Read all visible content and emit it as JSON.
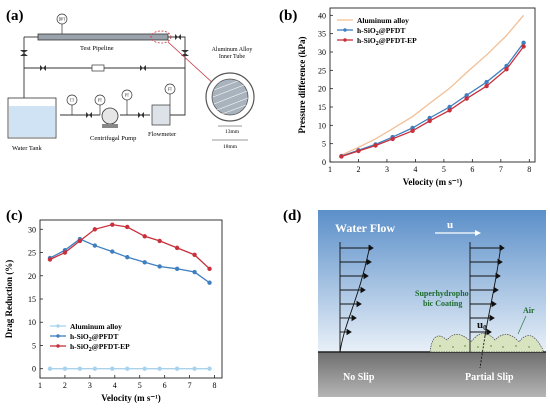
{
  "panel_a": {
    "letter": "(a)",
    "labels": {
      "test_pipeline": "Test Pipeline",
      "water_tank": "Water Tank",
      "centrifugal_pump": "Centrifugal Pump",
      "flowmeter": "Flowmeter",
      "inner_tube_1": "Aluminum Alloy",
      "inner_tube_2": "Inner Tube",
      "dim_13": "13mm",
      "dim_18": "18mm",
      "gauge_dpt": "DPT",
      "gauge_tt": "TT",
      "gauge_pt": "PT",
      "gauge_ft": "FT"
    }
  },
  "panel_b": {
    "letter": "(b)"
  },
  "panel_c": {
    "letter": "(c)"
  },
  "panel_d": {
    "letter": "(d)",
    "labels": {
      "water_flow": "Water Flow",
      "u": "u",
      "coating_1": "Superhydropho",
      "coating_2": "bic Coating",
      "air": "Air",
      "u0": "u0",
      "no_slip": "No Slip",
      "partial_slip": "Partial Slip"
    },
    "colors": {
      "water_top": "#5b8fc9",
      "water_bottom": "#e8f0f8",
      "ground": "#8c8c8c",
      "coating": "#d8e4c0"
    }
  },
  "chart_data": [
    {
      "type": "line",
      "panel": "b",
      "xlabel": "Velocity (m s⁻¹)",
      "ylabel": "Pressure difference (kPa)",
      "xlim": [
        1,
        8.2
      ],
      "ylim": [
        0,
        42
      ],
      "xticks": [
        1,
        2,
        3,
        4,
        5,
        6,
        7,
        8
      ],
      "yticks": [
        0,
        5,
        10,
        15,
        20,
        25,
        30,
        35,
        40
      ],
      "legend": "top-left",
      "series": [
        {
          "name": "Aluminum alloy",
          "color": "#f3bf95",
          "marker": "none",
          "x": [
            1.4,
            2.0,
            2.6,
            3.2,
            3.9,
            4.5,
            5.2,
            5.8,
            6.5,
            7.2,
            7.8
          ],
          "y": [
            1.9,
            4.0,
            6.3,
            9.1,
            12.4,
            16.0,
            20.1,
            24.4,
            29.2,
            34.5,
            40.0
          ]
        },
        {
          "name": "h-SiO2@PFDT",
          "color": "#3f7fbf",
          "marker": "circle",
          "x": [
            1.4,
            2.0,
            2.6,
            3.2,
            3.9,
            4.5,
            5.2,
            5.8,
            6.5,
            7.2,
            7.8
          ],
          "y": [
            1.6,
            3.2,
            4.8,
            6.8,
            9.3,
            12.0,
            15.0,
            18.2,
            21.8,
            26.2,
            32.5
          ]
        },
        {
          "name": "h-SiO2@PFDT-EP",
          "color": "#c8303c",
          "marker": "circle",
          "x": [
            1.4,
            2.0,
            2.6,
            3.2,
            3.9,
            4.5,
            5.2,
            5.8,
            6.5,
            7.2,
            7.8
          ],
          "y": [
            1.5,
            3.0,
            4.5,
            6.3,
            8.5,
            11.2,
            14.1,
            17.3,
            20.7,
            25.3,
            31.5
          ]
        }
      ]
    },
    {
      "type": "line",
      "panel": "c",
      "xlabel": "Velocity (m s⁻¹)",
      "ylabel": "Drag Reduction (%)",
      "xlim": [
        1,
        8.3
      ],
      "ylim": [
        -2,
        32
      ],
      "xticks": [
        1,
        2,
        3,
        4,
        5,
        6,
        7,
        8
      ],
      "yticks": [
        0,
        5,
        10,
        15,
        20,
        25,
        30
      ],
      "legend": "bottom-left",
      "series": [
        {
          "name": "Aluminum alloy",
          "color": "#a9d3ec",
          "marker": "circle",
          "x": [
            1.4,
            2.0,
            2.6,
            3.2,
            3.9,
            4.5,
            5.2,
            5.8,
            6.5,
            7.2,
            7.8
          ],
          "y": [
            0,
            0,
            0,
            0,
            0,
            0,
            0,
            0,
            0,
            0,
            0
          ]
        },
        {
          "name": "h-SiO2@PFDT",
          "color": "#3f7fbf",
          "marker": "circle",
          "x": [
            1.4,
            2.0,
            2.6,
            3.2,
            3.9,
            4.5,
            5.2,
            5.8,
            6.5,
            7.2,
            7.8
          ],
          "y": [
            23.8,
            25.5,
            27.9,
            26.5,
            25.2,
            24.0,
            22.9,
            22.0,
            21.5,
            20.8,
            18.5
          ]
        },
        {
          "name": "h-SiO2@PFDT-EP",
          "color": "#c8303c",
          "marker": "circle",
          "x": [
            1.4,
            2.0,
            2.6,
            3.2,
            3.9,
            4.5,
            5.2,
            5.8,
            6.5,
            7.2,
            7.8
          ],
          "y": [
            23.5,
            25.0,
            27.5,
            30.0,
            31.0,
            30.5,
            28.5,
            27.5,
            26.0,
            24.5,
            21.5
          ]
        }
      ]
    }
  ]
}
